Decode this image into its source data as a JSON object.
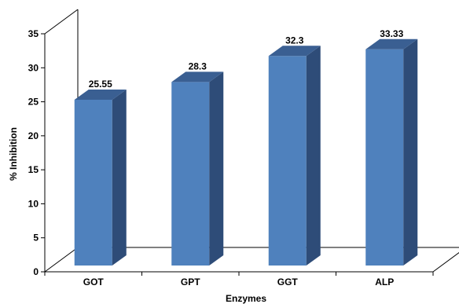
{
  "chart_data": {
    "type": "bar",
    "categories": [
      "GOT",
      "GPT",
      "GGT",
      "ALP"
    ],
    "values": [
      25.55,
      28.3,
      32.3,
      33.33
    ],
    "data_labels": [
      "25.55",
      "28.3",
      "32.3",
      "33.33"
    ],
    "title": "",
    "xlabel": "Enzymes",
    "ylabel": "% Inhibition",
    "ylim": [
      0,
      35
    ],
    "yticks": [
      "0",
      "5",
      "10",
      "15",
      "20",
      "25",
      "30",
      "35"
    ],
    "grid": false,
    "legend": "none",
    "style": "3d-column",
    "colors": {
      "bar_front": "#4F81BD",
      "bar_side": "#2E4C78",
      "bar_top": "#3A5F92",
      "axis": "#000000"
    }
  }
}
